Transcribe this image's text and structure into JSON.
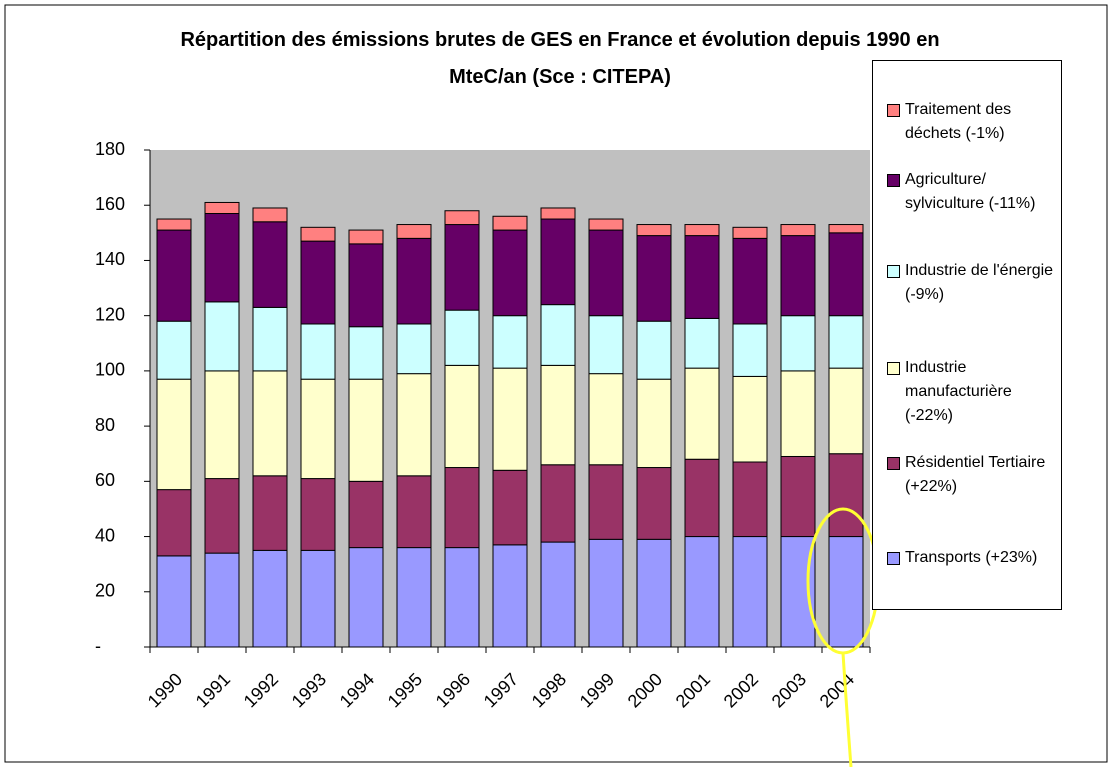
{
  "chart_data": {
    "type": "stacked_bar",
    "title": "Répartition des émissions brutes de GES en France et évolution depuis 1990 en MteC/an (Sce : CITEPA)",
    "categories": [
      "1990",
      "1991",
      "1992",
      "1993",
      "1994",
      "1995",
      "1996",
      "1997",
      "1998",
      "1999",
      "2000",
      "2001",
      "2002",
      "2003",
      "2004"
    ],
    "series": [
      {
        "name": "Transports (+23%)",
        "color": "#9999ff",
        "values": [
          33,
          34,
          35,
          35,
          36,
          36,
          36,
          37,
          38,
          39,
          39,
          40,
          40,
          40,
          40
        ]
      },
      {
        "name": "Résidentiel Tertiaire (+22%)",
        "color": "#993366",
        "values": [
          24,
          27,
          27,
          26,
          24,
          26,
          29,
          27,
          28,
          27,
          26,
          28,
          27,
          29,
          30
        ]
      },
      {
        "name": "Industrie manufacturière (-22%)",
        "color": "#ffffcc",
        "values": [
          40,
          39,
          38,
          36,
          37,
          37,
          37,
          37,
          36,
          33,
          32,
          33,
          31,
          31,
          31
        ]
      },
      {
        "name": "Industrie de l'énergie (-9%)",
        "color": "#ccffff",
        "values": [
          21,
          25,
          23,
          20,
          19,
          18,
          20,
          19,
          22,
          21,
          21,
          18,
          19,
          20,
          19
        ]
      },
      {
        "name": "Agriculture/ sylviculture (-11%)",
        "color": "#660066",
        "values": [
          33,
          32,
          31,
          30,
          30,
          31,
          31,
          31,
          31,
          31,
          31,
          30,
          31,
          29,
          30
        ]
      },
      {
        "name": "Traitement des déchets (-1%)",
        "color": "#ff8080",
        "values": [
          4,
          4,
          5,
          5,
          5,
          5,
          5,
          5,
          4,
          4,
          4,
          4,
          4,
          4,
          3
        ]
      }
    ],
    "ylim": [
      0,
      180
    ],
    "yticks": [
      {
        "value": 0,
        "label": "-"
      },
      20,
      40,
      60,
      80,
      100,
      120,
      140,
      160,
      180
    ],
    "plot_background": "#c0c0c0"
  }
}
